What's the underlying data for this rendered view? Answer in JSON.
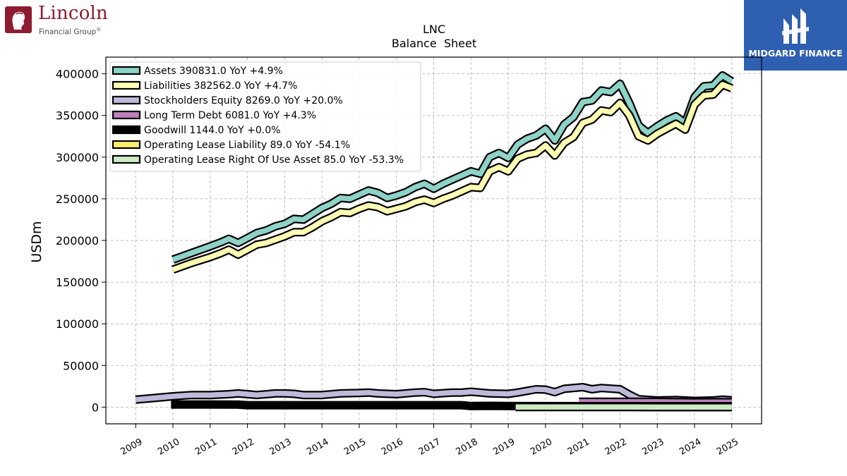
{
  "logos": {
    "left": {
      "name": "Lincoln",
      "tagline": "Financial Group",
      "mark": "®",
      "icon": "lincoln-portrait-seal"
    },
    "right": {
      "name": "MIDGARD FINANCE",
      "icon": "midgard-monogram"
    }
  },
  "chart_data": {
    "type": "area",
    "title": "LNC",
    "subtitle": "Balance  Sheet",
    "xlabel": "",
    "ylabel": "USDm",
    "xlim": [
      2008.2,
      2025.8
    ],
    "ylim": [
      -20000,
      420000
    ],
    "grid": true,
    "legend_position": "top-left",
    "x_ticks": [
      "2009",
      "2010",
      "2011",
      "2012",
      "2013",
      "2014",
      "2015",
      "2016",
      "2017",
      "2018",
      "2019",
      "2020",
      "2021",
      "2022",
      "2023",
      "2024",
      "2025"
    ],
    "y_ticks": [
      "0",
      "50000",
      "100000",
      "150000",
      "200000",
      "250000",
      "300000",
      "350000",
      "400000"
    ],
    "series": [
      {
        "name": "Assets",
        "legend": "Assets  390831.0 YoY +4.9%",
        "color": "#8dd3c7",
        "points": [
          [
            2010.0,
            177000
          ],
          [
            2010.5,
            185000
          ],
          [
            2011.0,
            193000
          ],
          [
            2011.3,
            198000
          ],
          [
            2011.5,
            202000
          ],
          [
            2011.75,
            197000
          ],
          [
            2012.0,
            203000
          ],
          [
            2012.25,
            209000
          ],
          [
            2012.5,
            212000
          ],
          [
            2012.75,
            217000
          ],
          [
            2013.0,
            220000
          ],
          [
            2013.25,
            226000
          ],
          [
            2013.5,
            225000
          ],
          [
            2013.75,
            232000
          ],
          [
            2014.0,
            239000
          ],
          [
            2014.25,
            244000
          ],
          [
            2014.5,
            251000
          ],
          [
            2014.75,
            250000
          ],
          [
            2015.0,
            255000
          ],
          [
            2015.25,
            260000
          ],
          [
            2015.5,
            257000
          ],
          [
            2015.75,
            251000
          ],
          [
            2016.0,
            254000
          ],
          [
            2016.25,
            258000
          ],
          [
            2016.5,
            264000
          ],
          [
            2016.75,
            268000
          ],
          [
            2017.0,
            262000
          ],
          [
            2017.25,
            268000
          ],
          [
            2017.5,
            273000
          ],
          [
            2017.75,
            278000
          ],
          [
            2018.0,
            283000
          ],
          [
            2018.25,
            280000
          ],
          [
            2018.5,
            300000
          ],
          [
            2018.75,
            305000
          ],
          [
            2019.0,
            299000
          ],
          [
            2019.25,
            315000
          ],
          [
            2019.5,
            322000
          ],
          [
            2019.75,
            326000
          ],
          [
            2020.0,
            334000
          ],
          [
            2020.25,
            320000
          ],
          [
            2020.5,
            339000
          ],
          [
            2020.75,
            348000
          ],
          [
            2021.0,
            366000
          ],
          [
            2021.25,
            368000
          ],
          [
            2021.5,
            380000
          ],
          [
            2021.75,
            378000
          ],
          [
            2022.0,
            388000
          ],
          [
            2022.25,
            365000
          ],
          [
            2022.5,
            338000
          ],
          [
            2022.75,
            329000
          ],
          [
            2023.0,
            337000
          ],
          [
            2023.25,
            344000
          ],
          [
            2023.5,
            349000
          ],
          [
            2023.75,
            341000
          ],
          [
            2024.0,
            372000
          ],
          [
            2024.25,
            385000
          ],
          [
            2024.5,
            386000
          ],
          [
            2024.75,
            398000
          ],
          [
            2025.0,
            391000
          ]
        ]
      },
      {
        "name": "Liabilities",
        "legend": "Liabilities  382562.0 YoY +4.7%",
        "color": "#ffffb3",
        "points": [
          [
            2010.0,
            165000
          ],
          [
            2010.5,
            173000
          ],
          [
            2011.0,
            180000
          ],
          [
            2011.3,
            185000
          ],
          [
            2011.5,
            189000
          ],
          [
            2011.75,
            183000
          ],
          [
            2012.0,
            189000
          ],
          [
            2012.25,
            195000
          ],
          [
            2012.5,
            197000
          ],
          [
            2012.75,
            201000
          ],
          [
            2013.0,
            205000
          ],
          [
            2013.25,
            210000
          ],
          [
            2013.5,
            210000
          ],
          [
            2013.75,
            216000
          ],
          [
            2014.0,
            223000
          ],
          [
            2014.25,
            228000
          ],
          [
            2014.5,
            234000
          ],
          [
            2014.75,
            233000
          ],
          [
            2015.0,
            238000
          ],
          [
            2015.25,
            242000
          ],
          [
            2015.5,
            240000
          ],
          [
            2015.75,
            235000
          ],
          [
            2016.0,
            238000
          ],
          [
            2016.25,
            241000
          ],
          [
            2016.5,
            246000
          ],
          [
            2016.75,
            249000
          ],
          [
            2017.0,
            245000
          ],
          [
            2017.25,
            250000
          ],
          [
            2017.5,
            254000
          ],
          [
            2017.75,
            259000
          ],
          [
            2018.0,
            264000
          ],
          [
            2018.25,
            263000
          ],
          [
            2018.5,
            283000
          ],
          [
            2018.75,
            288000
          ],
          [
            2019.0,
            283000
          ],
          [
            2019.25,
            298000
          ],
          [
            2019.5,
            303000
          ],
          [
            2019.75,
            305000
          ],
          [
            2020.0,
            314000
          ],
          [
            2020.25,
            302000
          ],
          [
            2020.5,
            317000
          ],
          [
            2020.75,
            324000
          ],
          [
            2021.0,
            341000
          ],
          [
            2021.25,
            345000
          ],
          [
            2021.5,
            356000
          ],
          [
            2021.75,
            354000
          ],
          [
            2022.0,
            365000
          ],
          [
            2022.25,
            350000
          ],
          [
            2022.5,
            325000
          ],
          [
            2022.75,
            320000
          ],
          [
            2023.0,
            328000
          ],
          [
            2023.25,
            334000
          ],
          [
            2023.5,
            340000
          ],
          [
            2023.75,
            333000
          ],
          [
            2024.0,
            363000
          ],
          [
            2024.25,
            374000
          ],
          [
            2024.5,
            375000
          ],
          [
            2024.75,
            387000
          ],
          [
            2025.0,
            382562
          ]
        ]
      },
      {
        "name": "Stockholders Equity",
        "legend": "Stockholders Equity  8269.0 YoY +20.0%",
        "color": "#bebada",
        "points": [
          [
            2009.0,
            9000
          ],
          [
            2009.5,
            11000
          ],
          [
            2010.0,
            13000
          ],
          [
            2010.5,
            14500
          ],
          [
            2011.0,
            14500
          ],
          [
            2011.5,
            15500
          ],
          [
            2011.75,
            16500
          ],
          [
            2012.0,
            15500
          ],
          [
            2012.25,
            14500
          ],
          [
            2012.75,
            16500
          ],
          [
            2013.0,
            16500
          ],
          [
            2013.25,
            16000
          ],
          [
            2013.5,
            14500
          ],
          [
            2014.0,
            14500
          ],
          [
            2014.5,
            16500
          ],
          [
            2015.0,
            17000
          ],
          [
            2015.25,
            17500
          ],
          [
            2015.5,
            16500
          ],
          [
            2016.0,
            15500
          ],
          [
            2016.25,
            16500
          ],
          [
            2016.5,
            17500
          ],
          [
            2016.75,
            18000
          ],
          [
            2017.0,
            16000
          ],
          [
            2017.5,
            17500
          ],
          [
            2017.75,
            17500
          ],
          [
            2018.0,
            18500
          ],
          [
            2018.25,
            17500
          ],
          [
            2018.5,
            16500
          ],
          [
            2019.0,
            16000
          ],
          [
            2019.25,
            17500
          ],
          [
            2019.5,
            19500
          ],
          [
            2019.75,
            21500
          ],
          [
            2020.0,
            21000
          ],
          [
            2020.25,
            18000
          ],
          [
            2020.5,
            22000
          ],
          [
            2021.0,
            24000
          ],
          [
            2021.25,
            21500
          ],
          [
            2021.5,
            23000
          ],
          [
            2022.0,
            21500
          ],
          [
            2022.25,
            15000
          ],
          [
            2022.5,
            9500
          ],
          [
            2023.0,
            8000
          ],
          [
            2023.5,
            8500
          ],
          [
            2024.0,
            7500
          ],
          [
            2024.5,
            8000
          ],
          [
            2024.75,
            9000
          ],
          [
            2025.0,
            8269
          ]
        ]
      },
      {
        "name": "Long Term Debt",
        "legend": "Long Term Debt  6081.0 YoY +4.3%",
        "color": "#bc80bd",
        "points": [
          [
            2020.9,
            6500
          ],
          [
            2021.5,
            6500
          ],
          [
            2022.0,
            6500
          ],
          [
            2023.0,
            6500
          ],
          [
            2024.0,
            5900
          ],
          [
            2024.5,
            6000
          ],
          [
            2025.0,
            6081
          ]
        ]
      },
      {
        "name": "Goodwill",
        "legend": "Goodwill  1144.0 YoY +0.0%",
        "color": "#000000",
        "points": [
          [
            2009.95,
            3200
          ],
          [
            2011.0,
            3200
          ],
          [
            2011.75,
            3000
          ],
          [
            2012.0,
            2300
          ],
          [
            2013.0,
            2300
          ],
          [
            2016.0,
            2300
          ],
          [
            2017.0,
            2300
          ],
          [
            2017.75,
            2300
          ],
          [
            2018.0,
            1300
          ],
          [
            2018.5,
            1600
          ],
          [
            2019.0,
            1300
          ],
          [
            2019.5,
            1200
          ],
          [
            2025.0,
            1144
          ]
        ]
      },
      {
        "name": "Operating Lease Liability",
        "legend": "Operating Lease Liability  89.0 YoY -54.1%",
        "color": "#ffed6f",
        "points": [
          [
            2019.2,
            200
          ],
          [
            2021.0,
            200
          ],
          [
            2023.0,
            180
          ],
          [
            2025.0,
            89
          ]
        ]
      },
      {
        "name": "Operating Lease Right Of Use Asset",
        "legend": "Operating Lease Right Of Use Asset  85.0 YoY -53.3%",
        "color": "#ccebc5",
        "points": [
          [
            2019.2,
            190
          ],
          [
            2021.0,
            190
          ],
          [
            2023.0,
            170
          ],
          [
            2025.0,
            85
          ]
        ]
      }
    ]
  }
}
